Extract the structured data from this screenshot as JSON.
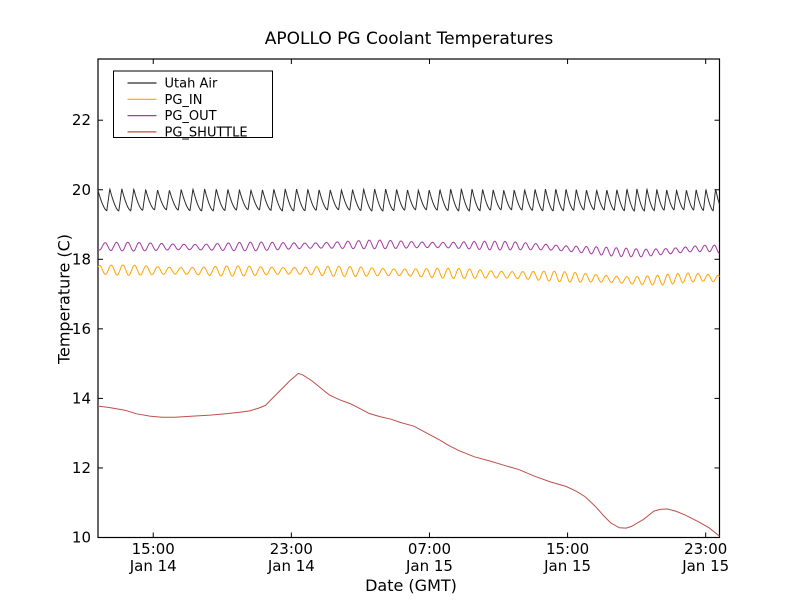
{
  "figure": {
    "title": "APOLLO PG Coolant Temperatures",
    "xlabel": "Date (GMT)",
    "ylabel": "Temperature (C)"
  },
  "chart_data": {
    "type": "line",
    "title": "APOLLO PG Coolant Temperatures",
    "xlabel": "Date (GMT)",
    "ylabel": "Temperature (C)",
    "grid": false,
    "x_unit": "hours from Jan 14 ~12:00 GMT",
    "xlim": [
      0,
      36
    ],
    "ylim": [
      10,
      23.76
    ],
    "yticks": [
      10,
      12,
      14,
      16,
      18,
      20,
      22
    ],
    "xticks": [
      {
        "h": 3.2,
        "time": "15:00",
        "date": "Jan 14"
      },
      {
        "h": 11.2,
        "time": "23:00",
        "date": "Jan 14"
      },
      {
        "h": 19.2,
        "time": "07:00",
        "date": "Jan 15"
      },
      {
        "h": 27.2,
        "time": "15:00",
        "date": "Jan 15"
      },
      {
        "h": 35.2,
        "time": "23:00",
        "date": "Jan 15"
      }
    ],
    "legend": {
      "position": "upper left",
      "entries": [
        "Utah Air",
        "PG_IN",
        "PG_OUT",
        "PG_SHUTTLE"
      ]
    },
    "series": [
      {
        "name": "Utah Air",
        "color": "#2b2b2b",
        "style": "sawtooth",
        "midline": [
          [
            0,
            19.71
          ],
          [
            36,
            19.71
          ]
        ],
        "amplitude": 0.3,
        "amp_mod": {
          "depth": 0.06,
          "period": 5.0
        },
        "period_hours": [
          0.7,
          0.56
        ],
        "phase0": 0.25
      },
      {
        "name": "PG_IN",
        "color": "#FFA500",
        "style": "sine",
        "midline": [
          [
            0,
            17.7
          ],
          [
            6,
            17.66
          ],
          [
            12,
            17.67
          ],
          [
            18,
            17.62
          ],
          [
            22,
            17.58
          ],
          [
            26,
            17.52
          ],
          [
            29,
            17.45
          ],
          [
            31,
            17.39
          ],
          [
            32.5,
            17.4
          ],
          [
            34,
            17.47
          ],
          [
            35,
            17.48
          ],
          [
            36,
            17.44
          ]
        ],
        "amplitude": 0.12,
        "amp_mod": {
          "depth": 0.22,
          "period": 6.3
        },
        "period_hours": [
          0.68,
          0.58
        ],
        "phase0": 0.1
      },
      {
        "name": "PG_OUT",
        "color": "#A23BA2",
        "style": "sine",
        "midline": [
          [
            0,
            18.37
          ],
          [
            6,
            18.35
          ],
          [
            12,
            18.39
          ],
          [
            16,
            18.43
          ],
          [
            20,
            18.41
          ],
          [
            24,
            18.39
          ],
          [
            26,
            18.35
          ],
          [
            28,
            18.28
          ],
          [
            30,
            18.21
          ],
          [
            31.5,
            18.18
          ],
          [
            33,
            18.23
          ],
          [
            34.5,
            18.3
          ],
          [
            35.5,
            18.32
          ],
          [
            36,
            18.28
          ]
        ],
        "amplitude": 0.1,
        "amp_mod": {
          "depth": 0.25,
          "period": 7.1
        },
        "period_hours": [
          0.66,
          0.56
        ],
        "phase0": 0.6
      },
      {
        "name": "PG_SHUTTLE",
        "color": "#BE4F4A",
        "style": "plain",
        "points": [
          [
            0,
            13.78
          ],
          [
            0.6,
            13.74
          ],
          [
            1.56,
            13.66
          ],
          [
            2.2,
            13.56
          ],
          [
            3.0,
            13.49
          ],
          [
            3.7,
            13.46
          ],
          [
            4.46,
            13.46
          ],
          [
            5.5,
            13.49
          ],
          [
            6.5,
            13.52
          ],
          [
            7.4,
            13.56
          ],
          [
            8.2,
            13.6
          ],
          [
            8.8,
            13.64
          ],
          [
            9.3,
            13.72
          ],
          [
            9.7,
            13.8
          ],
          [
            10.0,
            13.95
          ],
          [
            10.5,
            14.2
          ],
          [
            11.1,
            14.5
          ],
          [
            11.45,
            14.65
          ],
          [
            11.6,
            14.72
          ],
          [
            11.85,
            14.68
          ],
          [
            12.4,
            14.5
          ],
          [
            12.9,
            14.3
          ],
          [
            13.4,
            14.1
          ],
          [
            14.0,
            13.96
          ],
          [
            14.6,
            13.85
          ],
          [
            15.2,
            13.7
          ],
          [
            15.7,
            13.57
          ],
          [
            16.3,
            13.48
          ],
          [
            17.0,
            13.4
          ],
          [
            17.5,
            13.31
          ],
          [
            18.3,
            13.2
          ],
          [
            19.2,
            12.96
          ],
          [
            19.8,
            12.8
          ],
          [
            20.3,
            12.65
          ],
          [
            20.9,
            12.5
          ],
          [
            21.8,
            12.32
          ],
          [
            22.7,
            12.2
          ],
          [
            23.5,
            12.08
          ],
          [
            24.4,
            11.95
          ],
          [
            25.3,
            11.76
          ],
          [
            26.2,
            11.6
          ],
          [
            27.1,
            11.47
          ],
          [
            27.7,
            11.33
          ],
          [
            28.2,
            11.18
          ],
          [
            28.8,
            10.9
          ],
          [
            29.3,
            10.62
          ],
          [
            29.7,
            10.42
          ],
          [
            30.2,
            10.28
          ],
          [
            30.6,
            10.27
          ],
          [
            30.9,
            10.32
          ],
          [
            31.6,
            10.52
          ],
          [
            32.2,
            10.76
          ],
          [
            32.6,
            10.81
          ],
          [
            33.0,
            10.82
          ],
          [
            33.5,
            10.75
          ],
          [
            34.0,
            10.65
          ],
          [
            34.4,
            10.55
          ],
          [
            34.8,
            10.45
          ],
          [
            35.4,
            10.28
          ],
          [
            36,
            10.04
          ]
        ]
      }
    ]
  }
}
